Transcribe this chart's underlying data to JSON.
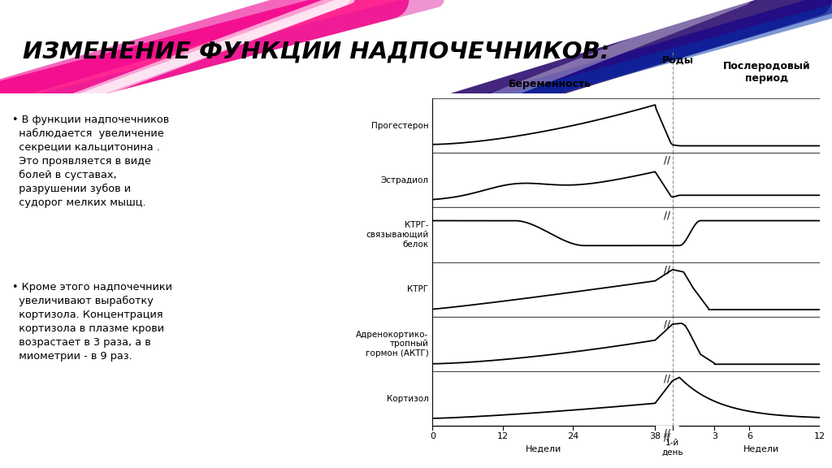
{
  "title": "ИЗМЕНЕНИЕ ФУНКЦИИ НАДПОЧЕЧНИКОВ:",
  "title_fontsize": 21,
  "bullet_texts": [
    "• В функции надпочечников\n  наблюдается  увеличение\n  секреции кальцитонина .\n  Это проявляется в виде\n  болей в суставах,\n  разрушении зубов и\n  судорог мелких мышц.",
    "• Кроме этого надпочечники\n  увеличивают выработку\n  кортизола. Концентрация\n  кортизола в плазме крови\n  возрастает в 3 раза, а в\n  миометрии - в 9 раз."
  ],
  "hormone_labels": [
    "Прогестерон",
    "Эстрадиол",
    "КТРГ-\nсвязывающий\nбелок",
    "КТРГ",
    "Адренокортико-\nтропный\nгормон (АКТГ)",
    "Кортизол"
  ],
  "preg_label": "Беременность",
  "birth_label": "Роды",
  "post_label": "Послеродовый\nпериод",
  "day_label": "1-й\nдень",
  "weeks_label": "Недели",
  "xaxis_preg_ticks": [
    0,
    12,
    24,
    38
  ],
  "xaxis_post_ticks": [
    3,
    6,
    12
  ],
  "line_color": "#000000",
  "line_width": 1.3,
  "header_stripe_colors": [
    "#ff007f",
    "#ee1188",
    "#dd22aa",
    "#cc33cc",
    "#9922ee",
    "#6611cc",
    "#3300aa",
    "#001188",
    "#0033cc",
    "#0066ee"
  ],
  "bg_color": "#f5f5f5"
}
